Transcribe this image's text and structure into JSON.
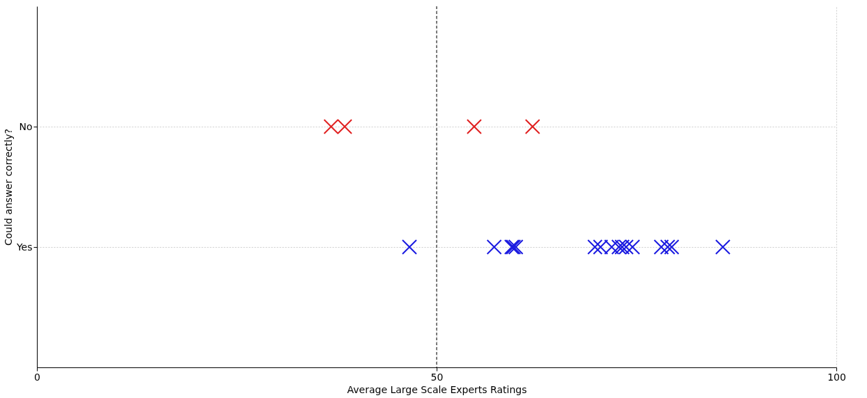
{
  "chart_data": {
    "type": "scatter",
    "orientation": "horizontal",
    "xlabel": "Average Large Scale Experts Ratings",
    "ylabel": "Could answer correctly?",
    "categories": [
      "No",
      "Yes"
    ],
    "xlim": [
      0,
      100
    ],
    "xticks": [
      0,
      50,
      100
    ],
    "grid": true,
    "marker": "cross",
    "series": [
      {
        "color": "#e02020",
        "x": [
          "No",
          "No",
          "No",
          "No"
        ],
        "values": [
          36.8,
          38.5,
          54.7,
          62.0
        ]
      },
      {
        "color": "#1a1ae0",
        "x": [
          "Yes",
          "Yes",
          "Yes",
          "Yes",
          "Yes",
          "Yes",
          "Yes",
          "Yes",
          "Yes",
          "Yes",
          "Yes",
          "Yes",
          "Yes",
          "Yes",
          "Yes",
          "Yes"
        ],
        "values": [
          46.6,
          57.2,
          59.4,
          59.6,
          59.9,
          69.8,
          70.5,
          71.9,
          72.8,
          73.2,
          73.7,
          74.5,
          78.1,
          78.9,
          79.4,
          85.8
        ]
      }
    ],
    "ref_lines": [
      {
        "axis": "x",
        "value": 50,
        "color": "#000000",
        "line_style": "dashed"
      }
    ]
  }
}
